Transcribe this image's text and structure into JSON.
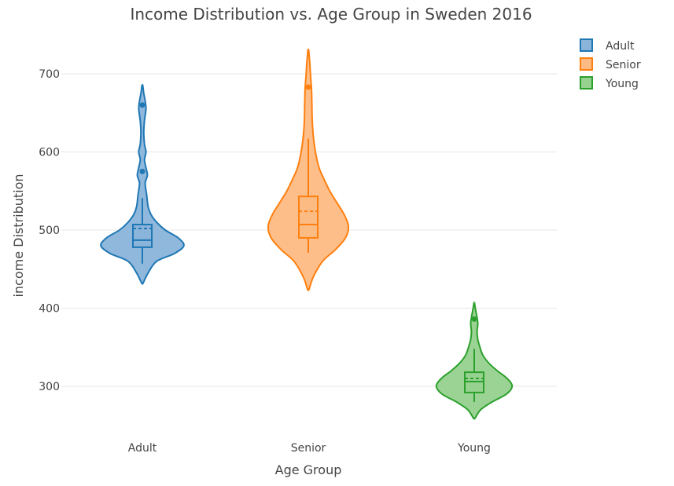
{
  "chart_data": {
    "type": "violin",
    "title": "Income Distribution vs. Age Group in Sweden 2016",
    "xlabel": "Age Group",
    "ylabel": "income Distribution",
    "categories": [
      "Adult",
      "Senior",
      "Young"
    ],
    "y_ticks": [
      300,
      400,
      500,
      600,
      700
    ],
    "ylim": [
      235,
      755
    ],
    "grid": true,
    "legend_position": "top-right",
    "series": [
      {
        "name": "Adult",
        "color": "#1f77b4",
        "fill": "#8ab4da",
        "box": {
          "q1": 478,
          "median": 487,
          "q3": 507,
          "mean": 502,
          "whisker_low": 457,
          "whisker_high": 541
        },
        "outliers": [
          575,
          660
        ],
        "density": [
          [
            432,
            0.01
          ],
          [
            445,
            0.08
          ],
          [
            460,
            0.2
          ],
          [
            470,
            0.45
          ],
          [
            480,
            0.58
          ],
          [
            490,
            0.5
          ],
          [
            500,
            0.32
          ],
          [
            510,
            0.2
          ],
          [
            520,
            0.12
          ],
          [
            530,
            0.08
          ],
          [
            545,
            0.06
          ],
          [
            560,
            0.04
          ],
          [
            570,
            0.07
          ],
          [
            580,
            0.05
          ],
          [
            590,
            0.03
          ],
          [
            600,
            0.05
          ],
          [
            610,
            0.03
          ],
          [
            625,
            0.02
          ],
          [
            640,
            0.03
          ],
          [
            655,
            0.05
          ],
          [
            665,
            0.04
          ],
          [
            675,
            0.02
          ],
          [
            685,
            0.005
          ]
        ]
      },
      {
        "name": "Senior",
        "color": "#ff7f0e",
        "fill": "#fdbb84",
        "box": {
          "q1": 490,
          "median": 507,
          "q3": 543,
          "mean": 524,
          "whisker_low": 471,
          "whisker_high": 617
        },
        "outliers": [
          683
        ],
        "density": [
          [
            424,
            0.01
          ],
          [
            440,
            0.07
          ],
          [
            460,
            0.2
          ],
          [
            475,
            0.38
          ],
          [
            490,
            0.52
          ],
          [
            505,
            0.56
          ],
          [
            520,
            0.5
          ],
          [
            535,
            0.4
          ],
          [
            550,
            0.3
          ],
          [
            565,
            0.22
          ],
          [
            580,
            0.15
          ],
          [
            600,
            0.1
          ],
          [
            620,
            0.07
          ],
          [
            640,
            0.055
          ],
          [
            660,
            0.05
          ],
          [
            680,
            0.045
          ],
          [
            700,
            0.03
          ],
          [
            715,
            0.02
          ],
          [
            730,
            0.005
          ]
        ]
      },
      {
        "name": "Young",
        "color": "#2ca02c",
        "fill": "#96d18f",
        "box": {
          "q1": 292,
          "median": 306,
          "q3": 318,
          "mean": 310,
          "whisker_low": 280,
          "whisker_high": 348
        },
        "outliers": [
          386
        ],
        "density": [
          [
            259,
            0.01
          ],
          [
            270,
            0.09
          ],
          [
            280,
            0.25
          ],
          [
            290,
            0.45
          ],
          [
            300,
            0.53
          ],
          [
            310,
            0.46
          ],
          [
            320,
            0.32
          ],
          [
            330,
            0.2
          ],
          [
            340,
            0.12
          ],
          [
            350,
            0.08
          ],
          [
            360,
            0.05
          ],
          [
            370,
            0.04
          ],
          [
            380,
            0.05
          ],
          [
            388,
            0.04
          ],
          [
            395,
            0.025
          ],
          [
            403,
            0.01
          ],
          [
            407,
            0.003
          ]
        ]
      }
    ]
  }
}
